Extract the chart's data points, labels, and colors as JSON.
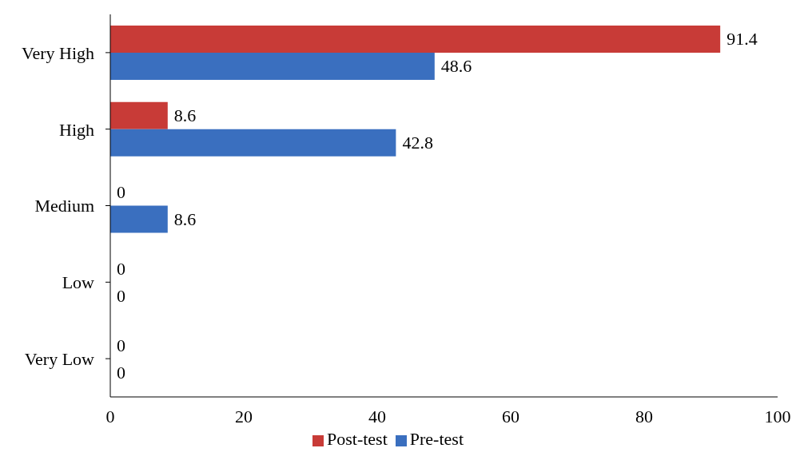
{
  "chart_data": {
    "type": "bar",
    "orientation": "horizontal",
    "categories": [
      "Very High",
      "High",
      "Medium",
      "Low",
      "Very Low"
    ],
    "series": [
      {
        "name": "Post-test",
        "color": "#c83b37",
        "values": [
          91.4,
          8.6,
          0,
          0,
          0
        ]
      },
      {
        "name": "Pre-test",
        "color": "#3a6fbf",
        "values": [
          48.6,
          42.8,
          8.6,
          0,
          0
        ]
      }
    ],
    "xlim": [
      0,
      100
    ],
    "xticks": [
      0,
      20,
      40,
      60,
      80,
      100
    ],
    "data_labels": true,
    "grid": false,
    "legend": "bottom"
  }
}
